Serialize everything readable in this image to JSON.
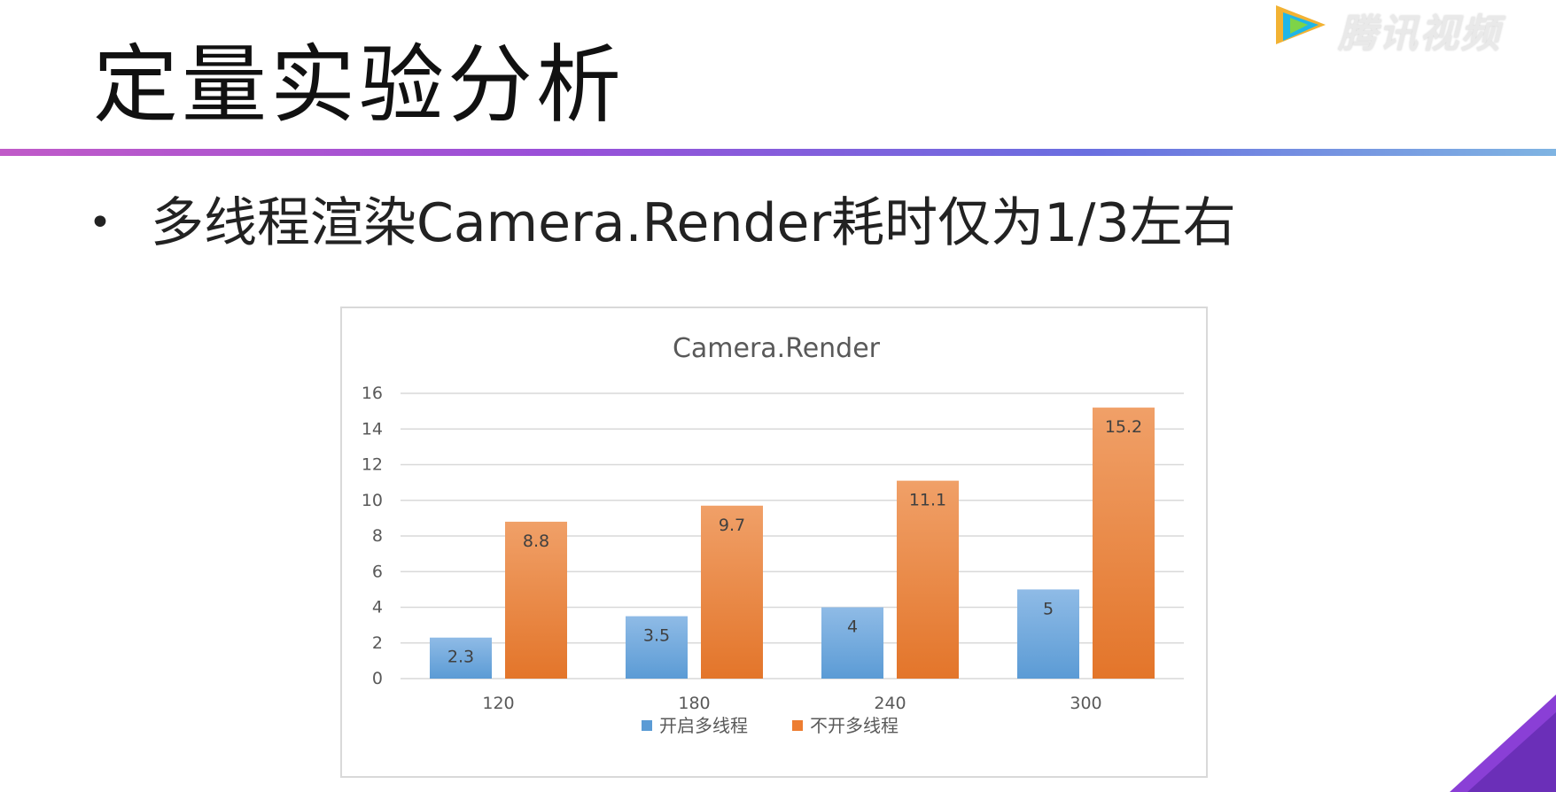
{
  "watermark": {
    "brand": "腾讯视频",
    "icon": "play-triangle-icon"
  },
  "slide": {
    "title": "定量实验分析",
    "bullet": "多线程渲染Camera.Render耗时仅为1/3左右"
  },
  "colors": {
    "series_blue": "#5b9bd5",
    "series_orange": "#ed7d31",
    "divider_start": "#c05ac8",
    "divider_end": "#7fb4e2",
    "badge": "#8a3fd6"
  },
  "chart_data": {
    "type": "bar",
    "title": "Camera.Render",
    "categories": [
      "120",
      "180",
      "240",
      "300"
    ],
    "series": [
      {
        "name": "开启多线程",
        "values": [
          2.3,
          3.5,
          4,
          5
        ]
      },
      {
        "name": "不开多线程",
        "values": [
          8.8,
          9.7,
          11.1,
          15.2
        ]
      }
    ],
    "ylim": [
      0,
      16
    ],
    "yticks": [
      0,
      2,
      4,
      6,
      8,
      10,
      12,
      14,
      16
    ],
    "grid": true,
    "legend": "bottom",
    "data_labels": true
  }
}
